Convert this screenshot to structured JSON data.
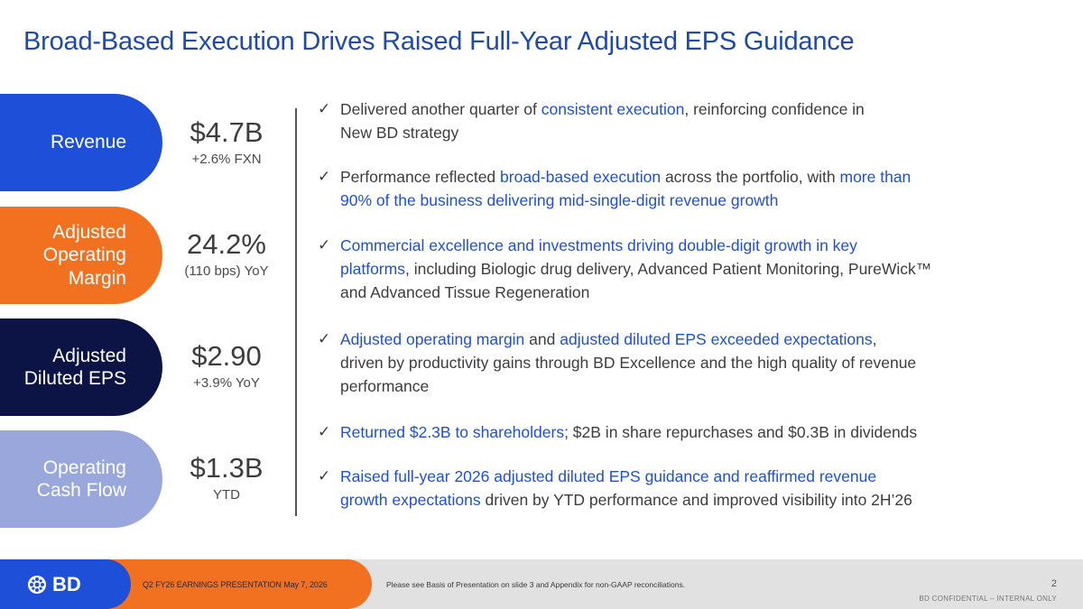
{
  "title": "Broad-Based Execution Drives Raised Full-Year Adjusted EPS Guidance",
  "colors": {
    "revenue": "#1e4fd8",
    "margin": "#f27121",
    "eps": "#0c1445",
    "cash": "#9aa7dd",
    "highlight": "#1e4fd8",
    "title": "#1f4aa8"
  },
  "kpis": [
    {
      "label_lines": [
        "Revenue"
      ],
      "value": "$4.7B",
      "sub": "+2.6% FXN"
    },
    {
      "label_lines": [
        "Adjusted",
        "Operating",
        "Margin"
      ],
      "value": "24.2%",
      "sub": "(110 bps) YoY"
    },
    {
      "label_lines": [
        "Adjusted",
        "Diluted EPS"
      ],
      "value": "$2.90",
      "sub": "+3.9% YoY"
    },
    {
      "label_lines": [
        "Operating",
        "Cash Flow"
      ],
      "value": "$1.3B",
      "sub": "YTD"
    }
  ],
  "bullets": [
    {
      "parts": [
        {
          "t": "Delivered another quarter of "
        },
        {
          "t": "consistent execution",
          "hl": true
        },
        {
          "t": ", reinforcing confidence in"
        },
        {
          "br": true
        },
        {
          "t": "New BD strategy"
        }
      ]
    },
    {
      "parts": [
        {
          "t": "Performance reflected "
        },
        {
          "t": "broad-based execution",
          "hl": true
        },
        {
          "t": " across the portfolio, with "
        },
        {
          "t": "more than",
          "hl": true
        },
        {
          "br": true
        },
        {
          "t": "90% of the business delivering mid-single-digit revenue growth",
          "hl": true
        }
      ]
    },
    {
      "parts": [
        {
          "t": "Commercial excellence and investments driving double-digit growth in key",
          "hl": true
        },
        {
          "br": true
        },
        {
          "t": "platforms",
          "hl": true
        },
        {
          "t": ", including Biologic drug delivery, Advanced Patient Monitoring, PureWick™"
        },
        {
          "br": true
        },
        {
          "t": "and Advanced Tissue Regeneration"
        }
      ]
    },
    {
      "parts": [
        {
          "t": "Adjusted operating margin",
          "hl": true
        },
        {
          "t": " and "
        },
        {
          "t": "adjusted diluted EPS exceeded expectations",
          "hl": true
        },
        {
          "t": ","
        },
        {
          "br": true
        },
        {
          "t": "driven by productivity gains through BD Excellence and the high quality of revenue"
        },
        {
          "br": true
        },
        {
          "t": "performance"
        }
      ]
    },
    {
      "parts": [
        {
          "t": "Returned $2.3B to shareholders",
          "hl": true
        },
        {
          "t": "; $2B in share repurchases and $0.3B in dividends"
        }
      ]
    },
    {
      "parts": [
        {
          "t": "Raised full-year 2026 adjusted diluted EPS guidance and reaffirmed revenue",
          "hl": true
        },
        {
          "br": true
        },
        {
          "t": "growth expectations",
          "hl": true
        },
        {
          "t": " driven by YTD performance and improved visibility into 2H’26"
        }
      ]
    }
  ],
  "check_glyph": "✓",
  "footer": {
    "logo_text": "BD",
    "logo_icon": "bd-starburst-logo-icon",
    "presentation": "Q2 FY26 EARNINGS PRESENTATION   May 7, 2026",
    "note": "Please see Basis of Presentation on slide 3 and Appendix for non-GAAP reconciliations.",
    "page": "2",
    "confidential": "BD CONFIDENTIAL – INTERNAL ONLY"
  }
}
